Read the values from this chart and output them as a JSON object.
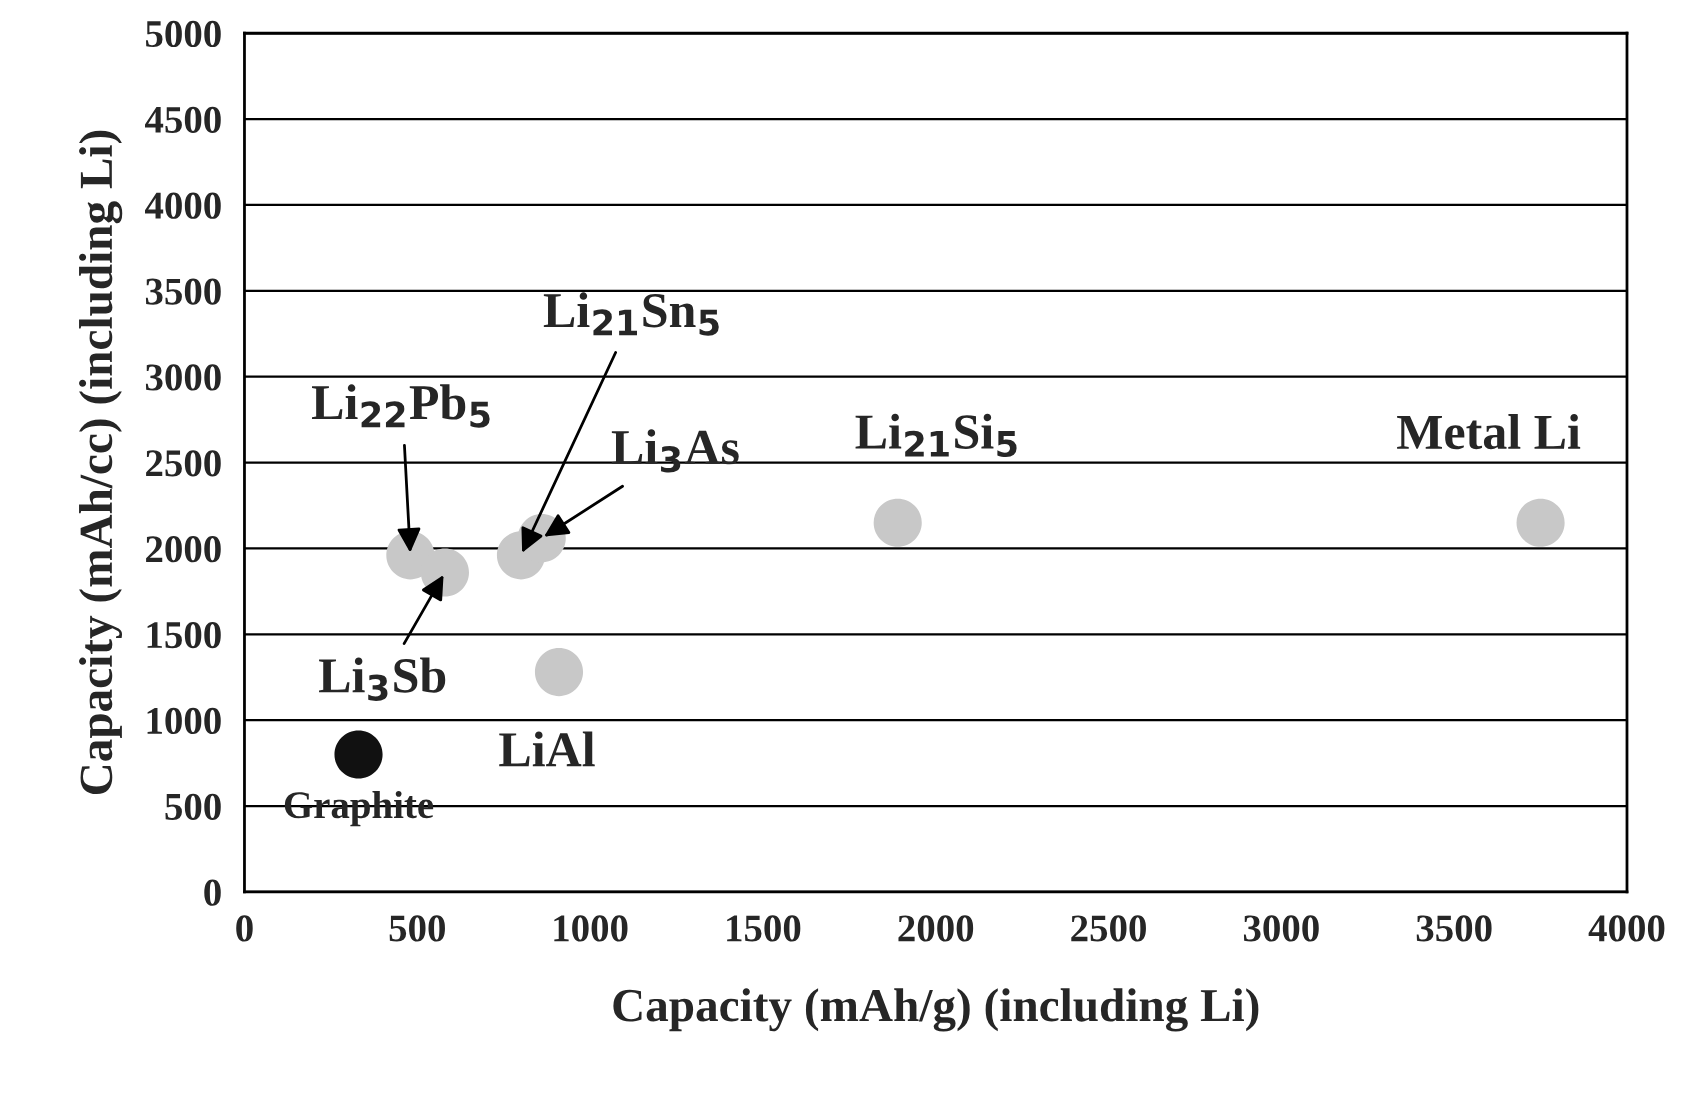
{
  "chart_data": {
    "type": "scatter",
    "xlabel": "Capacity (mAh/g) (including Li)",
    "ylabel": "Capacity (mAh/cc) (including Li)",
    "x": [
      330,
      480,
      580,
      800,
      860,
      910,
      1890,
      3750
    ],
    "values": [
      800,
      1960,
      1860,
      1960,
      2060,
      1280,
      2150,
      2150
    ],
    "colors": [
      "#111111",
      "#c8c8c8",
      "#c8c8c8",
      "#c8c8c8",
      "#c8c8c8",
      "#c8c8c8",
      "#c8c8c8",
      "#c8c8c8"
    ],
    "marker": "circle",
    "xlim": [
      0,
      4000
    ],
    "xticks": [
      0,
      500,
      1000,
      1500,
      2000,
      2500,
      3000,
      3500,
      4000
    ],
    "ylim": [
      0,
      5000
    ],
    "yticks": [
      0,
      500,
      1000,
      1500,
      2000,
      2500,
      3000,
      3500,
      4000,
      4500,
      5000
    ],
    "grid": "y",
    "annotations": [
      {
        "text": "Graphite",
        "x": 330,
        "y": 800
      },
      {
        "text": "Li$_{22}$Pb$_{5}$",
        "x": 480,
        "y": 1960
      },
      {
        "text": "Li$_{3}$Sb",
        "x": 580,
        "y": 1860
      },
      {
        "text": "Li$_{21}$Sn$_{5}$",
        "x": 800,
        "y": 1960
      },
      {
        "text": "Li$_{3}$As",
        "x": 860,
        "y": 2060
      },
      {
        "text": "LiAl",
        "x": 910,
        "y": 1280
      },
      {
        "text": "Li$_{21}$Si$_{5}$",
        "x": 1890,
        "y": 2150
      },
      {
        "text": "Metal Li",
        "x": 3750,
        "y": 2150
      }
    ]
  }
}
